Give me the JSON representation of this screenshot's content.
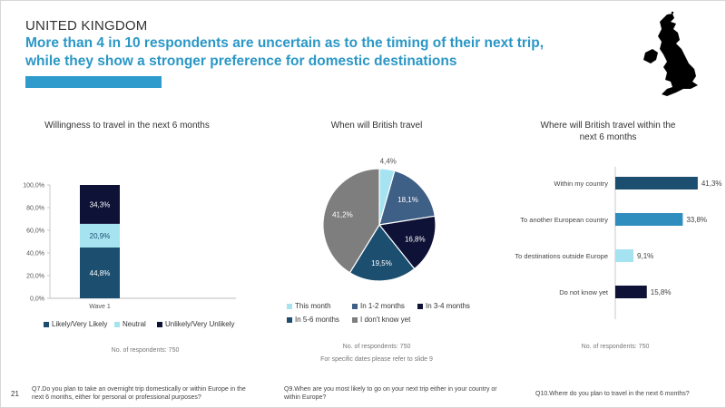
{
  "header": {
    "country": "UNITED KINGDOM",
    "headline": "More than 4 in 10 respondents are uncertain as to the timing of their next trip, while they show a stronger preference for domestic destinations"
  },
  "colors": {
    "headline": "#2b97c6",
    "likely": "#1c4e6f",
    "neutral": "#a6e3f0",
    "unlikely": "#0e1236",
    "this_month": "#a6e3f0",
    "in_1_2_months": "#3e5f86",
    "in_3_4_months": "#0e1236",
    "in_5_6_months": "#1c4e6f",
    "dont_know": "#7e7e7e",
    "bars": [
      "#1c4e6f",
      "#2f8ebd",
      "#a6e3f0",
      "#0e1236"
    ]
  },
  "chart_data": [
    {
      "type": "bar",
      "stacked": true,
      "title": "Willingness to travel in the next 6 months",
      "categories": [
        "Wave 1"
      ],
      "series": [
        {
          "name": "Likely/Very Likely",
          "values": [
            44.8
          ],
          "label": "44,8%"
        },
        {
          "name": "Neutral",
          "values": [
            20.9
          ],
          "label": "20,9%"
        },
        {
          "name": "Unlikely/Very Unlikely",
          "values": [
            34.3
          ],
          "label": "34,3%"
        }
      ],
      "ylim": [
        0,
        100
      ],
      "yticks": [
        0,
        20,
        40,
        60,
        80,
        100
      ],
      "ytick_labels": [
        "0,0%",
        "20,0%",
        "40,0%",
        "60,0%",
        "80,0%",
        "100,0%"
      ],
      "legend_position": "bottom",
      "note": "No. of respondents: 750"
    },
    {
      "type": "pie",
      "title": "When will British travel",
      "slices": [
        {
          "name": "This month",
          "value": 4.4,
          "label": "4,4%"
        },
        {
          "name": "In 1-2 months",
          "value": 18.1,
          "label": "18,1%"
        },
        {
          "name": "In 3-4 months",
          "value": 16.8,
          "label": "16,8%"
        },
        {
          "name": "In 5-6 months",
          "value": 19.5,
          "label": "19,5%"
        },
        {
          "name": "I don't know yet",
          "value": 41.2,
          "label": "41,2%"
        }
      ],
      "legend_position": "bottom",
      "note": "No. of respondents: 750",
      "note2": "For specific dates please refer to slide 9"
    },
    {
      "type": "bar",
      "orientation": "horizontal",
      "title": "Where will British travel within the next 6 months",
      "categories": [
        "Within my country",
        "To another European country",
        "To destinations outside Europe",
        "Do not know yet"
      ],
      "values": [
        41.3,
        33.8,
        9.1,
        15.8
      ],
      "value_labels": [
        "41,3%",
        "33,8%",
        "9,1%",
        "15,8%"
      ],
      "xlim": [
        0,
        50
      ],
      "note": "No. of respondents: 750"
    }
  ],
  "footer": {
    "page": "21",
    "q1": "Q7.Do you plan to take an overnight trip domestically or within Europe in the next 6 months, either for personal or professional purposes?",
    "q2": "Q9.When are you most likely to go on your next trip either in your country or within Europe?",
    "q3": "Q10.Where do you plan to travel in the next 6 months?"
  }
}
